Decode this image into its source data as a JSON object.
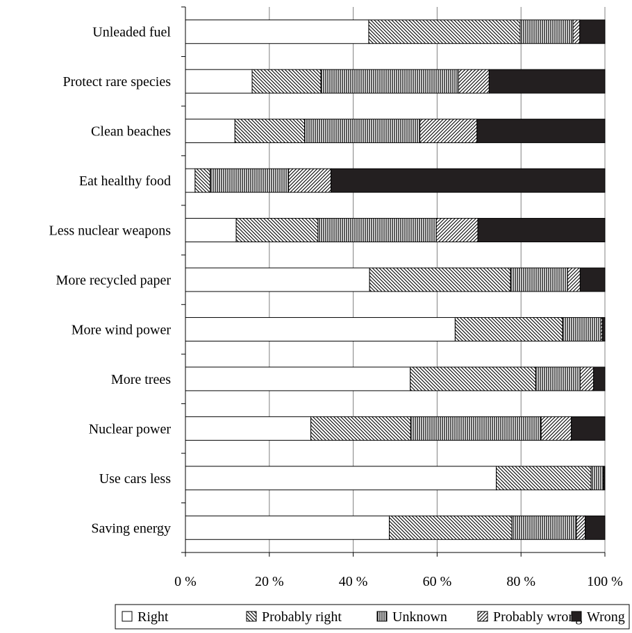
{
  "chart_data": {
    "type": "bar",
    "orientation": "horizontal",
    "stacked": true,
    "percent_stacked": true,
    "title": "",
    "xlabel": "",
    "ylabel": "",
    "xlim": [
      0,
      100
    ],
    "x_ticks": [
      0,
      20,
      40,
      60,
      80,
      100
    ],
    "x_tick_labels": [
      "0 %",
      "20 %",
      "40 %",
      "60 %",
      "80 %",
      "100 %"
    ],
    "grid": "vertical",
    "legend_position": "bottom",
    "categories": [
      "Unleaded fuel",
      "Protect rare species",
      "Clean beaches",
      "Eat healthy food",
      "Less nuclear weapons",
      "More recycled paper",
      "More wind power",
      "More trees",
      "Nuclear power",
      "Use cars less",
      "Saving energy"
    ],
    "series": [
      {
        "name": "Right",
        "pattern": "none",
        "values": [
          43.7,
          15.9,
          11.8,
          2.3,
          12.1,
          43.9,
          64.3,
          53.6,
          29.9,
          74.1,
          48.6
        ]
      },
      {
        "name": "Probably right",
        "pattern": "diag-down",
        "values": [
          36.1,
          16.4,
          16.6,
          3.6,
          19.5,
          33.6,
          25.6,
          29.9,
          23.8,
          22.6,
          29.2
        ]
      },
      {
        "name": "Unknown",
        "pattern": "vertical",
        "values": [
          12.6,
          32.8,
          27.5,
          18.7,
          28.2,
          13.6,
          9.1,
          10.6,
          31.1,
          2.8,
          15.4
        ]
      },
      {
        "name": "Probably wrong",
        "pattern": "diag-up",
        "values": [
          1.6,
          7.3,
          13.6,
          10.1,
          9.9,
          3.0,
          0.4,
          3.2,
          7.2,
          0.2,
          2.1
        ]
      },
      {
        "name": "Wrong",
        "pattern": "solid",
        "values": [
          6.0,
          27.6,
          30.5,
          65.3,
          30.3,
          5.9,
          0.6,
          2.7,
          8.0,
          0.3,
          4.7
        ]
      }
    ]
  }
}
